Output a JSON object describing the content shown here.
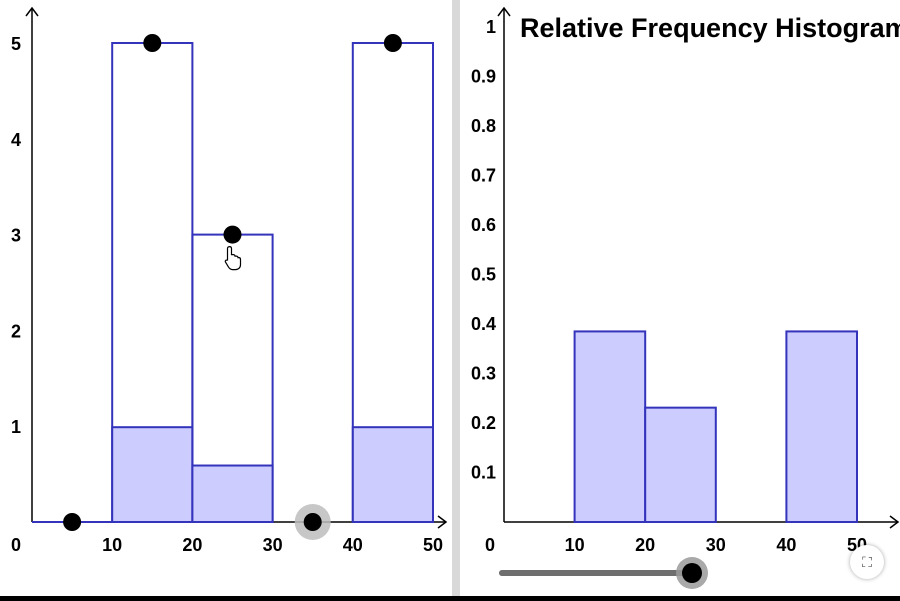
{
  "left_panel": {
    "x_ticks": [
      "0",
      "10",
      "20",
      "30",
      "40",
      "50"
    ],
    "y_ticks": [
      "1",
      "2",
      "3",
      "4",
      "5"
    ],
    "bins": [
      {
        "from": 10,
        "to": 20,
        "count": 5
      },
      {
        "from": 20,
        "to": 30,
        "count": 3
      },
      {
        "from": 40,
        "to": 50,
        "count": 5
      }
    ],
    "points": [
      {
        "x": 5,
        "y": 0
      },
      {
        "x": 15,
        "y": 5
      },
      {
        "x": 25,
        "y": 3
      },
      {
        "x": 45,
        "y": 5
      }
    ],
    "slider": {
      "value": 35
    }
  },
  "chart_data": {
    "type": "bar",
    "title": "Relative Frequency Histogram",
    "xlabel": "",
    "ylabel": "",
    "categories": [
      "10-20",
      "20-30",
      "30-40",
      "40-50"
    ],
    "values": [
      0.385,
      0.231,
      0,
      0.385
    ],
    "xlim": [
      0,
      50
    ],
    "ylim": [
      0,
      1
    ],
    "x_ticks": [
      "0",
      "10",
      "20",
      "30",
      "40",
      "50"
    ],
    "y_ticks": [
      "0.1",
      "0.2",
      "0.3",
      "0.4",
      "0.5",
      "0.6",
      "0.7",
      "0.8",
      "0.9",
      "1"
    ],
    "grid": false
  },
  "bottom_slider": {
    "value": 1
  },
  "colors": {
    "bar_stroke": "#3333bb",
    "bar_fill": "#ccccff"
  },
  "icons": {
    "expand": "expand-icon",
    "cursor": "hand-pointer-icon"
  }
}
